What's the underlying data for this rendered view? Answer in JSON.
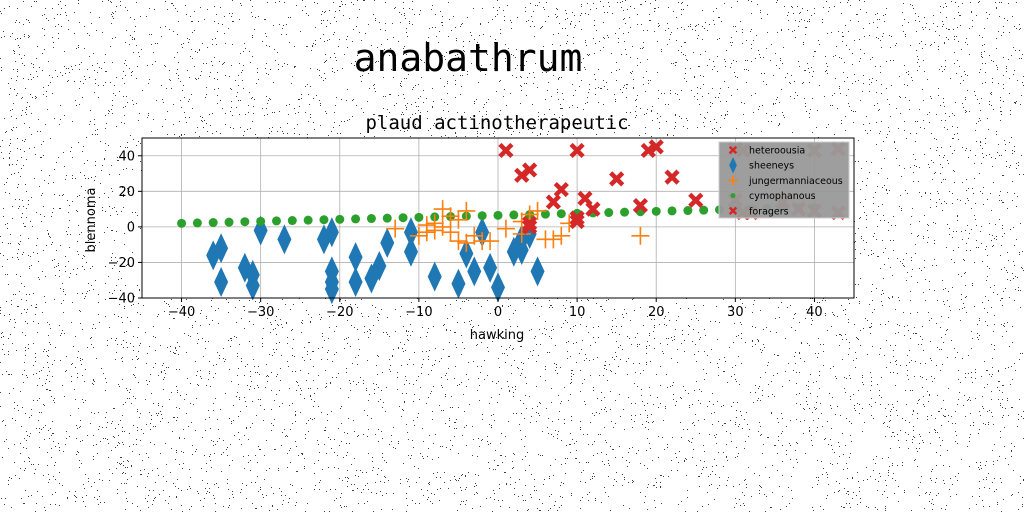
{
  "figure": {
    "suptitle": "anabathrum"
  },
  "chart_data": {
    "type": "scatter",
    "title": "plaud actinotherapeutic",
    "xlabel": "hawking",
    "ylabel": "blennoma",
    "xlim": [
      -45,
      45
    ],
    "ylim": [
      -40,
      50
    ],
    "xticks": [
      -40,
      -30,
      -20,
      -10,
      0,
      10,
      20,
      30,
      40
    ],
    "yticks": [
      -40,
      -20,
      0,
      20,
      40
    ],
    "grid": true,
    "legend_position": "top-right",
    "series": [
      {
        "name": "heteroousia",
        "marker": "x-thick",
        "color": "#d62728",
        "points": [
          [
            30,
            44
          ],
          [
            31,
            43
          ],
          [
            40,
            43
          ],
          [
            43,
            44
          ],
          [
            30,
            15
          ],
          [
            31,
            8
          ],
          [
            32,
            8
          ],
          [
            38,
            10
          ],
          [
            40,
            9
          ],
          [
            36,
            14
          ],
          [
            43,
            8
          ]
        ]
      },
      {
        "name": "sheeneys",
        "marker": "thin-diamond",
        "color": "#1f77b4",
        "points": [
          [
            -36,
            -16
          ],
          [
            -35,
            -12
          ],
          [
            -35,
            -31
          ],
          [
            -32,
            -23
          ],
          [
            -31,
            -27
          ],
          [
            -31,
            -33
          ],
          [
            -30,
            -2
          ],
          [
            -27,
            -7
          ],
          [
            -22,
            -7
          ],
          [
            -21,
            -3
          ],
          [
            -21,
            -25
          ],
          [
            -21,
            -31
          ],
          [
            -21,
            -35
          ],
          [
            -18,
            -17
          ],
          [
            -18,
            -31
          ],
          [
            -16,
            -29
          ],
          [
            -15,
            -22
          ],
          [
            -14,
            -9
          ],
          [
            -11,
            -3
          ],
          [
            -11,
            -14
          ],
          [
            -8,
            -28
          ],
          [
            -5,
            -32
          ],
          [
            -4,
            -15
          ],
          [
            -3,
            -25
          ],
          [
            -1,
            -23
          ],
          [
            0,
            -34
          ],
          [
            2,
            -14
          ],
          [
            3,
            -7
          ],
          [
            4,
            -4
          ],
          [
            5,
            -25
          ],
          [
            3,
            -13
          ],
          [
            -2,
            -3
          ]
        ]
      },
      {
        "name": "jungermanniaceous",
        "marker": "plus",
        "color": "#ff7f0e",
        "points": [
          [
            -13,
            -1
          ],
          [
            -10,
            -5
          ],
          [
            -9,
            -3
          ],
          [
            -9,
            1
          ],
          [
            -8,
            -2
          ],
          [
            -8,
            2
          ],
          [
            -7,
            10
          ],
          [
            -7,
            0
          ],
          [
            -6,
            -3
          ],
          [
            -6,
            6
          ],
          [
            -5,
            -8
          ],
          [
            -5,
            4
          ],
          [
            -4,
            -9
          ],
          [
            -4,
            9
          ],
          [
            -3,
            -5
          ],
          [
            -2,
            -8
          ],
          [
            -1,
            -8
          ],
          [
            1,
            -1
          ],
          [
            3,
            3
          ],
          [
            3,
            -4
          ],
          [
            4,
            7
          ],
          [
            5,
            9
          ],
          [
            6,
            -7
          ],
          [
            7,
            -7
          ],
          [
            8,
            -5
          ],
          [
            9,
            2
          ],
          [
            18,
            -5
          ]
        ]
      },
      {
        "name": "cymophanous",
        "marker": "circle",
        "color": "#2ca02c",
        "x_range": [
          -40,
          41
        ],
        "x_step": 2,
        "y_start": 2,
        "y_end": 11
      },
      {
        "name": "foragers",
        "marker": "x-thick",
        "color": "#d62728",
        "points": [
          [
            1,
            43
          ],
          [
            3,
            29
          ],
          [
            4,
            32
          ],
          [
            4,
            0
          ],
          [
            4,
            2
          ],
          [
            7,
            14
          ],
          [
            8,
            21
          ],
          [
            10,
            5
          ],
          [
            10,
            43
          ],
          [
            11,
            16
          ],
          [
            15,
            27
          ],
          [
            19,
            43
          ],
          [
            20,
            45
          ],
          [
            22,
            28
          ],
          [
            25,
            15
          ],
          [
            10,
            3
          ],
          [
            12,
            10
          ],
          [
            18,
            12
          ]
        ]
      }
    ]
  }
}
